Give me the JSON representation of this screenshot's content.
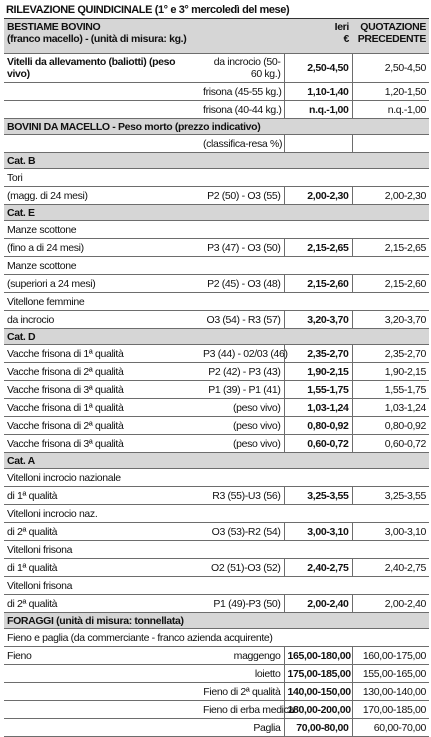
{
  "title": "RILEVAZIONE QUINDICINALE (1° e 3° mercoledì del mese)",
  "header": {
    "line1": "BESTIAME BOVINO",
    "line2": "(franco macello) - (unità di misura: kg.)",
    "price1": "Ieri",
    "price2": "€",
    "prev1": "QUOTAZIONE",
    "prev2": "PRECEDENTE"
  },
  "rows": [
    {
      "label": "Vitelli da allevamento (baliotti) (peso vivo)",
      "spec": "da incrocio (50-60 kg.)",
      "price": "2,50-4,50",
      "previous": "2,50-4,50"
    },
    {
      "spec": "frisona (45-55 kg.)",
      "price": "1,10-1,40",
      "previous": "1,20-1,50"
    },
    {
      "spec": "frisona (40-44 kg.)",
      "price": "n.q.-1,00",
      "previous": "n.q.-1,00"
    },
    {
      "section": "BOVINI DA MACELLO - Peso morto (prezzo indicativo)"
    },
    {
      "spec": "(classifica-resa %)"
    },
    {
      "section": "Cat. B"
    },
    {
      "label": "Tori"
    },
    {
      "label": "(magg. di 24 mesi)",
      "spec": "P2 (50) - O3 (55)",
      "price": "2,00-2,30",
      "previous": "2,00-2,30"
    },
    {
      "section": "Cat. E"
    },
    {
      "label": "Manze scottone"
    },
    {
      "label": "(fino a di 24 mesi)",
      "spec": "P3 (47) - O3 (50)",
      "price": "2,15-2,65",
      "previous": "2,15-2,65"
    },
    {
      "label": "Manze scottone"
    },
    {
      "label": "(superiori a 24 mesi)",
      "spec": "P2 (45) - O3 (48)",
      "price": "2,15-2,60",
      "previous": "2,15-2,60"
    },
    {
      "label": "Vitellone femmine"
    },
    {
      "label": "da incrocio",
      "spec": "O3 (54) - R3 (57)",
      "price": "3,20-3,70",
      "previous": "3,20-3,70"
    },
    {
      "section": "Cat. D"
    },
    {
      "label": "Vacche frisona di 1ª qualità",
      "spec": "P3 (44) - 02/03 (46)",
      "price": "2,35-2,70",
      "previous": "2,35-2,70"
    },
    {
      "label": "Vacche frisona di 2ª qualità",
      "spec": "P2 (42) - P3 (43)",
      "price": "1,90-2,15",
      "previous": "1,90-2,15"
    },
    {
      "label": "Vacche frisona di 3ª qualità",
      "spec": "P1 (39) - P1 (41)",
      "price": "1,55-1,75",
      "previous": "1,55-1,75"
    },
    {
      "label": "Vacche frisona di 1ª qualità",
      "spec": "(peso vivo)",
      "price": "1,03-1,24",
      "previous": "1,03-1,24"
    },
    {
      "label": "Vacche frisona di 2ª qualità",
      "spec": "(peso vivo)",
      "price": "0,80-0,92",
      "previous": "0,80-0,92"
    },
    {
      "label": "Vacche frisona di 3ª qualità",
      "spec": "(peso vivo)",
      "price": "0,60-0,72",
      "previous": "0,60-0,72"
    },
    {
      "section": "Cat. A"
    },
    {
      "label": "Vitelloni incrocio nazionale"
    },
    {
      "label": "di 1ª qualità",
      "spec": "R3 (55)-U3 (56)",
      "price": "3,25-3,55",
      "previous": "3,25-3,55"
    },
    {
      "label": "Vitelloni incrocio naz."
    },
    {
      "label": "di 2ª qualità",
      "spec": "O3 (53)-R2 (54)",
      "price": "3,00-3,10",
      "previous": "3,00-3,10"
    },
    {
      "label": "Vitelloni frisona"
    },
    {
      "label": "di 1ª qualità",
      "spec": "O2 (51)-O3 (52)",
      "price": "2,40-2,75",
      "previous": "2,40-2,75"
    },
    {
      "label": "Vitelloni frisona"
    },
    {
      "label": "di 2ª qualità",
      "spec": "P1 (49)-P3 (50)",
      "price": "2,00-2,40",
      "previous": "2,00-2,40"
    },
    {
      "section": "FORAGGI (unità di misura: tonnellata)"
    },
    {
      "label": "Fieno e paglia (da commerciante - franco azienda acquirente)"
    },
    {
      "label": "Fieno",
      "spec": "maggengo",
      "price": "165,00-180,00",
      "previous": "160,00-175,00"
    },
    {
      "spec": "loietto",
      "price": "175,00-185,00",
      "previous": "155,00-165,00"
    },
    {
      "spec": "Fieno di 2ª qualità",
      "price": "140,00-150,00",
      "previous": "130,00-140,00"
    },
    {
      "spec": "Fieno di erba medica",
      "price": "180,00-200,00",
      "previous": "170,00-185,00"
    },
    {
      "spec": "Paglia",
      "price": "70,00-80,00",
      "previous": "60,00-70,00"
    }
  ]
}
